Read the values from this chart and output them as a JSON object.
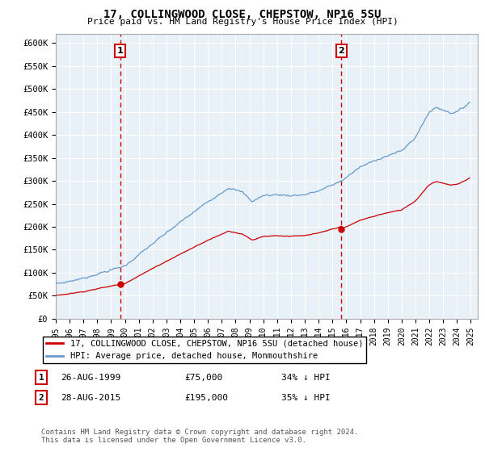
{
  "title": "17, COLLINGWOOD CLOSE, CHEPSTOW, NP16 5SU",
  "subtitle": "Price paid vs. HM Land Registry's House Price Index (HPI)",
  "ylim": [
    0,
    620000
  ],
  "yticks": [
    0,
    50000,
    100000,
    150000,
    200000,
    250000,
    300000,
    350000,
    400000,
    450000,
    500000,
    550000,
    600000
  ],
  "ytick_labels": [
    "£0",
    "£50K",
    "£100K",
    "£150K",
    "£200K",
    "£250K",
    "£300K",
    "£350K",
    "£400K",
    "£450K",
    "£500K",
    "£550K",
    "£600K"
  ],
  "xlim_start": 1995.0,
  "xlim_end": 2025.5,
  "sale1_date": 1999.65,
  "sale1_price": 75000,
  "sale2_date": 2015.65,
  "sale2_price": 195000,
  "sale_color": "#cc0000",
  "hpi_color": "#6699cc",
  "plot_bg_color": "#e8f0f8",
  "grid_color": "#ffffff",
  "bg_color": "#ffffff",
  "legend_label_sale": "17, COLLINGWOOD CLOSE, CHEPSTOW, NP16 5SU (detached house)",
  "legend_label_hpi": "HPI: Average price, detached house, Monmouthshire",
  "footer": "Contains HM Land Registry data © Crown copyright and database right 2024.\nThis data is licensed under the Open Government Licence v3.0.",
  "annotation1_label": "1",
  "annotation1_date_str": "26-AUG-1999",
  "annotation1_price_str": "£75,000",
  "annotation1_hpi_str": "34% ↓ HPI",
  "annotation2_label": "2",
  "annotation2_date_str": "28-AUG-2015",
  "annotation2_price_str": "£195,000",
  "annotation2_hpi_str": "35% ↓ HPI"
}
